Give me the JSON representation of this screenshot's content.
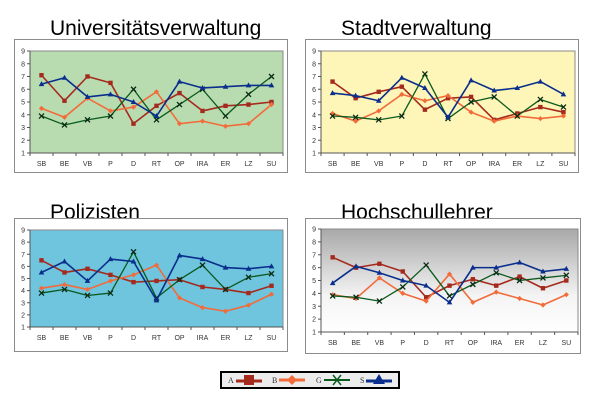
{
  "legend": {
    "items": [
      {
        "key": "A",
        "label": "A",
        "color": "#a52a1e",
        "marker": "square"
      },
      {
        "key": "B",
        "label": "B",
        "color": "#f26b3a",
        "marker": "diamond"
      },
      {
        "key": "G",
        "label": "G",
        "color": "#0a5a1e",
        "marker": "x"
      },
      {
        "key": "S",
        "label": "S",
        "color": "#0a2e8c",
        "marker": "triangle"
      }
    ]
  },
  "chart_data": [
    {
      "type": "line",
      "title": "Universitätsverwaltung",
      "background": "#b8dcb0",
      "categories": [
        "SB",
        "BE",
        "VB",
        "P",
        "D",
        "RT",
        "OP",
        "IRA",
        "ER",
        "LZ",
        "SU"
      ],
      "yticks": [
        1,
        2,
        3,
        4,
        5,
        6,
        7,
        8,
        9
      ],
      "ylim": [
        1,
        9
      ],
      "series": [
        {
          "name": "A",
          "values": [
            7.1,
            5.1,
            7.0,
            6.5,
            3.3,
            4.7,
            5.7,
            4.3,
            4.7,
            4.8,
            5.0
          ]
        },
        {
          "name": "B",
          "values": [
            4.5,
            3.8,
            5.3,
            4.3,
            4.6,
            5.8,
            3.3,
            3.5,
            3.1,
            3.3,
            4.8
          ]
        },
        {
          "name": "G",
          "values": [
            3.9,
            3.2,
            3.6,
            3.9,
            6.0,
            3.6,
            4.8,
            6.0,
            3.9,
            5.6,
            7.0
          ]
        },
        {
          "name": "S",
          "values": [
            6.4,
            6.9,
            5.4,
            5.6,
            5.0,
            3.9,
            6.6,
            6.1,
            6.2,
            6.3,
            6.3
          ]
        }
      ]
    },
    {
      "type": "line",
      "title": "Stadtverwaltung",
      "background": "#fdf6b8",
      "categories": [
        "SB",
        "BE",
        "VB",
        "P",
        "D",
        "RT",
        "OP",
        "IRA",
        "ER",
        "LZ",
        "SU"
      ],
      "yticks": [
        1,
        2,
        3,
        4,
        5,
        6,
        7,
        8,
        9
      ],
      "ylim": [
        1,
        9
      ],
      "series": [
        {
          "name": "A",
          "values": [
            6.6,
            5.3,
            5.8,
            6.2,
            4.4,
            5.3,
            5.4,
            3.6,
            4.1,
            4.6,
            4.2
          ]
        },
        {
          "name": "B",
          "values": [
            4.1,
            3.5,
            4.3,
            5.6,
            5.1,
            5.5,
            4.2,
            3.5,
            3.9,
            3.7,
            3.9
          ]
        },
        {
          "name": "G",
          "values": [
            3.9,
            3.8,
            3.6,
            3.9,
            7.2,
            3.7,
            5.0,
            5.4,
            3.9,
            5.2,
            4.6
          ]
        },
        {
          "name": "S",
          "values": [
            5.7,
            5.5,
            5.1,
            6.9,
            6.1,
            3.8,
            6.7,
            5.9,
            6.1,
            6.6,
            5.6
          ]
        }
      ]
    },
    {
      "type": "line",
      "title": "Polizisten",
      "background": "#6fc4de",
      "categories": [
        "SB",
        "BE",
        "VB",
        "P",
        "D",
        "RT",
        "OP",
        "IRA",
        "ER",
        "LZ",
        "SU"
      ],
      "yticks": [
        1,
        2,
        3,
        4,
        5,
        6,
        7,
        8,
        9
      ],
      "ylim": [
        1,
        9
      ],
      "series": [
        {
          "name": "A",
          "values": [
            6.5,
            5.5,
            5.8,
            5.3,
            4.7,
            4.8,
            4.9,
            4.3,
            4.1,
            3.8,
            4.4
          ]
        },
        {
          "name": "B",
          "values": [
            4.2,
            4.5,
            4.1,
            4.8,
            5.3,
            6.1,
            3.4,
            2.6,
            2.3,
            2.8,
            3.7
          ]
        },
        {
          "name": "G",
          "values": [
            3.8,
            4.1,
            3.6,
            3.8,
            7.2,
            3.4,
            4.9,
            6.1,
            4.1,
            5.1,
            5.4
          ]
        },
        {
          "name": "S",
          "values": [
            5.5,
            6.4,
            4.8,
            6.6,
            6.4,
            3.2,
            6.9,
            6.6,
            5.9,
            5.8,
            6.0
          ]
        }
      ]
    },
    {
      "type": "line",
      "title": "Hochschullehrer",
      "background": "gradient-gray",
      "categories": [
        "SB",
        "BE",
        "VB",
        "P",
        "D",
        "RT",
        "OP",
        "IRA",
        "ER",
        "LZ",
        "SU"
      ],
      "yticks": [
        1,
        2,
        3,
        4,
        5,
        6,
        7,
        8,
        9
      ],
      "ylim": [
        1,
        9
      ],
      "series": [
        {
          "name": "A",
          "values": [
            6.8,
            6.0,
            6.3,
            5.7,
            3.7,
            4.6,
            5.1,
            4.6,
            5.3,
            4.4,
            5.0
          ]
        },
        {
          "name": "B",
          "values": [
            3.9,
            3.6,
            5.2,
            4.0,
            3.4,
            5.5,
            3.3,
            4.1,
            3.6,
            3.1,
            3.9
          ]
        },
        {
          "name": "G",
          "values": [
            3.8,
            3.7,
            3.4,
            4.5,
            6.2,
            3.8,
            4.7,
            5.6,
            5.0,
            5.2,
            5.4
          ]
        },
        {
          "name": "S",
          "values": [
            4.8,
            6.1,
            5.6,
            5.0,
            4.6,
            3.3,
            6.0,
            6.0,
            6.4,
            5.7,
            5.9
          ]
        }
      ]
    }
  ]
}
